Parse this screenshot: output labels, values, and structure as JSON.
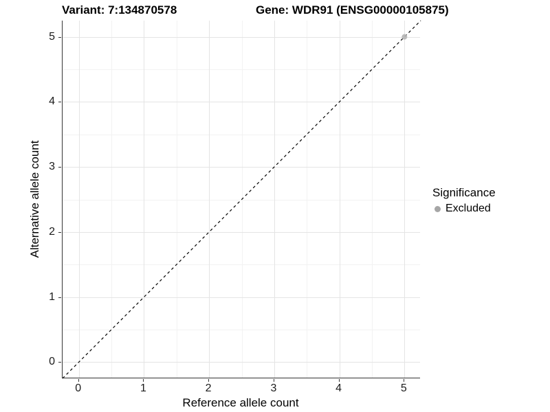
{
  "figure": {
    "title_left": "Variant: 7:134870578",
    "title_right": "Gene: WDR91 (ENSG00000105875)"
  },
  "chart_data": {
    "type": "scatter",
    "title": "Variant: 7:134870578   Gene: WDR91 (ENSG00000105875)",
    "xlabel": "Reference allele count",
    "ylabel": "Alternative allele count",
    "xlim": [
      -0.25,
      5.25
    ],
    "ylim": [
      -0.25,
      5.25
    ],
    "xticks": [
      0,
      1,
      2,
      3,
      4,
      5
    ],
    "yticks": [
      0,
      1,
      2,
      3,
      4,
      5
    ],
    "xminor": [
      0.5,
      1.5,
      2.5,
      3.5,
      4.5
    ],
    "yminor": [
      0.5,
      1.5,
      2.5,
      3.5,
      4.5
    ],
    "grid": "major+minor",
    "reference_line": {
      "type": "identity",
      "from": [
        -0.25,
        -0.25
      ],
      "to": [
        5.25,
        5.25
      ],
      "style": "dashed",
      "color": "#000000"
    },
    "series": [
      {
        "name": "Excluded",
        "color": "#b5b5b5",
        "points": [
          {
            "x": 5,
            "y": 5
          }
        ]
      }
    ],
    "legend": {
      "title": "Significance",
      "position": "right",
      "items": [
        {
          "label": "Excluded",
          "color": "#a6a6a6"
        }
      ]
    },
    "colors": {
      "panel_bg": "#ffffff",
      "grid_major": "#e4e4e4",
      "grid_minor": "#f2f2f2",
      "axis_line": "#333333",
      "tick_text": "#1a1a1a",
      "title_text": "#000000"
    }
  }
}
